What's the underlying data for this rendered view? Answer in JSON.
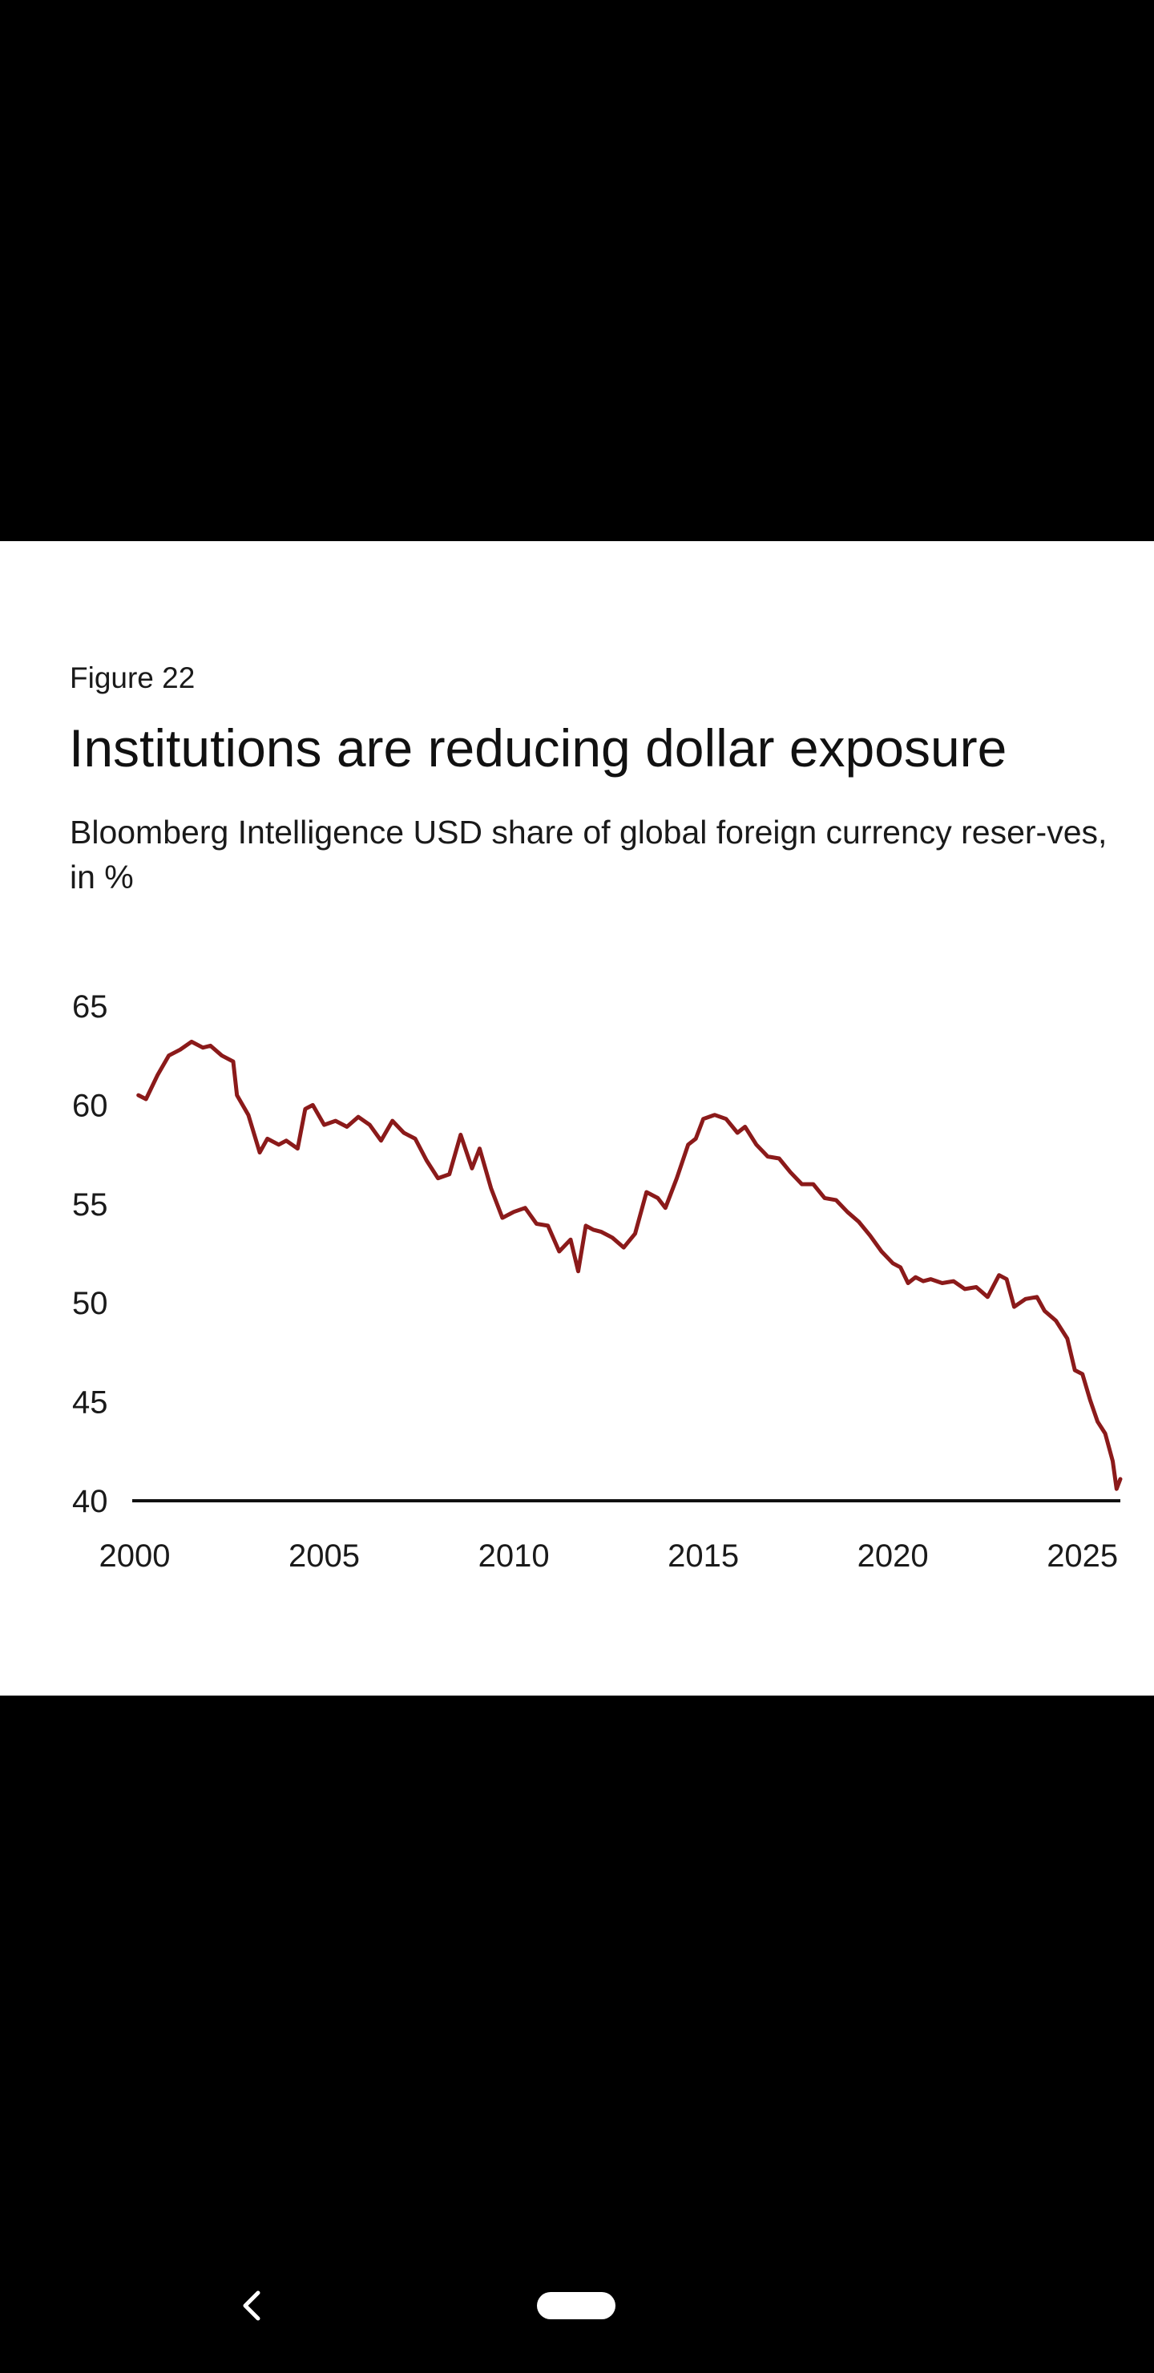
{
  "figure": {
    "label": "Figure 22",
    "title": "Institutions are reducing dollar exposure",
    "subtitle": "Bloomberg Intelligence USD share of global foreign currency reser-ves, in %"
  },
  "chart_data": {
    "type": "line",
    "title": "Institutions are reducing dollar exposure",
    "subtitle": "Bloomberg Intelligence USD share of global foreign currency reser-ves, in %",
    "xlabel": "",
    "ylabel": "",
    "xlim": [
      2000,
      2026
    ],
    "ylim": [
      40,
      65
    ],
    "x_ticks": [
      2000,
      2005,
      2010,
      2015,
      2020,
      2025
    ],
    "x_tick_labels": [
      "2000",
      "2005",
      "2010",
      "2015",
      "2020",
      "2025"
    ],
    "y_ticks": [
      40,
      45,
      50,
      55,
      60,
      65
    ],
    "y_tick_labels": [
      "40",
      "45",
      "50",
      "55",
      "60",
      "65"
    ],
    "grid": false,
    "line_color": "#8b1a1a",
    "series": [
      {
        "name": "USD share",
        "x": [
          2000.1,
          2000.3,
          2000.6,
          2000.9,
          2001.2,
          2001.5,
          2001.8,
          2002.0,
          2002.3,
          2002.6,
          2002.7,
          2003.0,
          2003.3,
          2003.5,
          2003.8,
          2004.0,
          2004.3,
          2004.5,
          2004.7,
          2005.0,
          2005.3,
          2005.6,
          2005.9,
          2006.2,
          2006.5,
          2006.8,
          2007.1,
          2007.4,
          2007.7,
          2008.0,
          2008.3,
          2008.6,
          2008.9,
          2009.1,
          2009.4,
          2009.7,
          2010.0,
          2010.3,
          2010.6,
          2010.9,
          2011.2,
          2011.5,
          2011.7,
          2011.9,
          2012.1,
          2012.3,
          2012.6,
          2012.9,
          2013.2,
          2013.5,
          2013.8,
          2014.0,
          2014.3,
          2014.6,
          2014.8,
          2015.0,
          2015.3,
          2015.6,
          2015.9,
          2016.1,
          2016.4,
          2016.7,
          2017.0,
          2017.3,
          2017.6,
          2017.9,
          2018.2,
          2018.5,
          2018.8,
          2019.1,
          2019.4,
          2019.7,
          2020.0,
          2020.2,
          2020.4,
          2020.6,
          2020.8,
          2021.0,
          2021.3,
          2021.6,
          2021.9,
          2022.2,
          2022.5,
          2022.8,
          2023.0,
          2023.2,
          2023.5,
          2023.8,
          2024.0,
          2024.3,
          2024.6,
          2024.8,
          2025.0,
          2025.2,
          2025.4,
          2025.6,
          2025.8,
          2025.9,
          2026.0
        ],
        "values": [
          60.5,
          60.3,
          61.5,
          62.5,
          62.8,
          63.2,
          62.9,
          63.0,
          62.5,
          62.2,
          60.5,
          59.5,
          57.6,
          58.3,
          58.0,
          58.2,
          57.8,
          59.8,
          60.0,
          59.0,
          59.2,
          58.9,
          59.4,
          59.0,
          58.2,
          59.2,
          58.6,
          58.3,
          57.2,
          56.3,
          56.5,
          58.5,
          56.8,
          57.8,
          55.8,
          54.3,
          54.6,
          54.8,
          54.0,
          53.9,
          52.6,
          53.2,
          51.6,
          53.9,
          53.7,
          53.6,
          53.3,
          52.8,
          53.5,
          55.6,
          55.3,
          54.8,
          56.3,
          58.0,
          58.3,
          59.3,
          59.5,
          59.3,
          58.6,
          58.9,
          58.0,
          57.4,
          57.3,
          56.6,
          56.0,
          56.0,
          55.3,
          55.2,
          54.6,
          54.1,
          53.4,
          52.6,
          52.0,
          51.8,
          51.0,
          51.3,
          51.1,
          51.2,
          51.0,
          51.1,
          50.7,
          50.8,
          50.3,
          51.4,
          51.2,
          49.8,
          50.2,
          50.3,
          49.6,
          49.1,
          48.2,
          46.6,
          46.4,
          45.1,
          44.0,
          43.4,
          42.0,
          40.6,
          41.1
        ]
      }
    ]
  }
}
